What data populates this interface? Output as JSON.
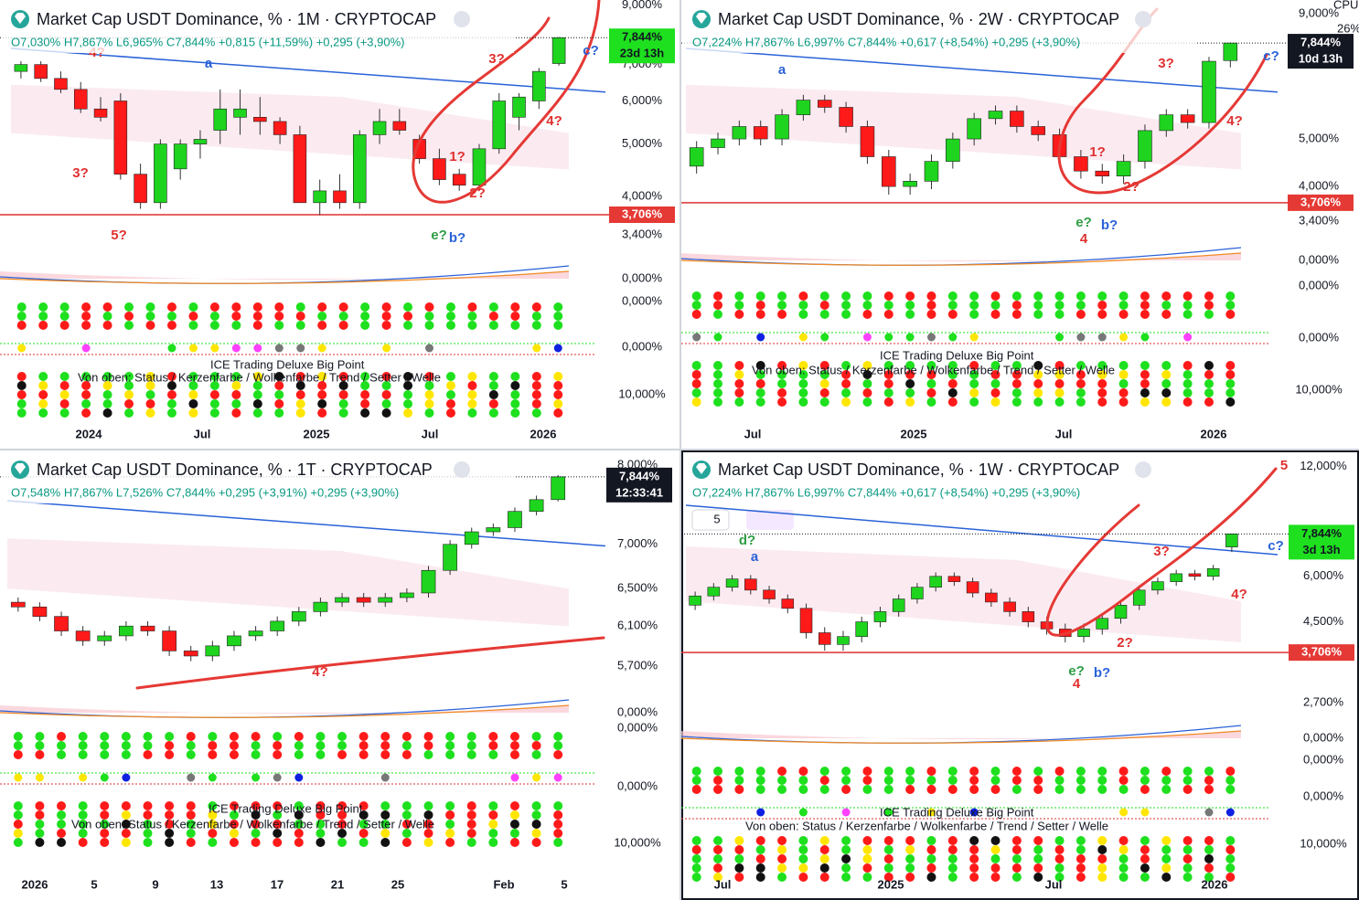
{
  "chart_data": [
    {
      "type": "candlestick",
      "title": "Market Cap USDT Dominance, % · 1M · CRYPTOCAP",
      "ohlc": "O7,030% H7,867% L6,965% C7,844% +0,815 (+11,59%) +0,295 (+3,90%)",
      "log_scale": true,
      "grid": false,
      "up_color": "#1ed41e",
      "down_color": "#ff1a1a",
      "ylim": [
        3.3,
        9.2
      ],
      "yticks": [
        {
          "value": 9.0,
          "label": "9,000%"
        },
        {
          "value": 7.0,
          "label": "7,000%"
        },
        {
          "value": 6.0,
          "label": "6,000%"
        },
        {
          "value": 5.0,
          "label": "5,000%"
        },
        {
          "value": 4.0,
          "label": "4,000%"
        },
        {
          "value": 3.4,
          "label": "3,400%"
        }
      ],
      "open": [
        6.8,
        7.0,
        6.6,
        6.3,
        5.8,
        6.0,
        4.4,
        3.9,
        4.5,
        5.0,
        5.3,
        5.6,
        5.6,
        5.5,
        5.2,
        3.9,
        4.1,
        3.9,
        5.2,
        5.5,
        5.1,
        4.7,
        4.4,
        4.2,
        4.9,
        5.6,
        6.0,
        7.03
      ],
      "high": [
        7.1,
        7.1,
        6.8,
        6.5,
        6.1,
        6.2,
        4.6,
        5.1,
        5.1,
        5.3,
        6.3,
        6.3,
        6.1,
        5.6,
        5.4,
        4.3,
        4.4,
        5.3,
        5.8,
        5.8,
        5.2,
        4.9,
        4.5,
        5.0,
        6.2,
        6.2,
        6.9,
        7.867
      ],
      "low": [
        6.6,
        6.5,
        6.2,
        5.7,
        5.5,
        4.3,
        3.8,
        3.8,
        4.3,
        4.7,
        5.0,
        5.2,
        5.2,
        5.0,
        3.9,
        3.7,
        3.8,
        3.8,
        5.0,
        5.2,
        4.6,
        4.2,
        4.1,
        4.1,
        4.8,
        5.3,
        5.8,
        6.965
      ],
      "close": [
        7.0,
        6.6,
        6.3,
        5.8,
        5.6,
        4.4,
        3.9,
        5.0,
        5.0,
        5.1,
        5.8,
        5.8,
        5.5,
        5.2,
        3.9,
        4.1,
        3.9,
        5.2,
        5.5,
        5.3,
        4.7,
        4.3,
        4.2,
        4.9,
        6.0,
        6.1,
        6.8,
        7.844
      ],
      "last_price": {
        "value": 7.844,
        "label": "7,844%"
      },
      "countdown": "23d 13h",
      "support": {
        "value": 3.706,
        "label": "3,706%"
      },
      "time_labels": [
        "2024",
        "Jul",
        "2025",
        "Jul",
        "2026"
      ],
      "indicator_labels": [
        "0,000%",
        "0,000%",
        "0,000%",
        "10,000%"
      ],
      "indicator_texts": [
        "ICE Trading Deluxe Big Point",
        "Von oben: Status / Kerzenfarbe / Wolkenfarbe / Trend / Setter / Welle"
      ],
      "annotations": [
        {
          "text": "4?",
          "color": "#e03030"
        },
        {
          "text": "a",
          "color": "#2a62d8"
        },
        {
          "text": "3?",
          "color": "#e03030"
        },
        {
          "text": "5?",
          "color": "#e03030"
        },
        {
          "text": "3?",
          "color": "#e03030"
        },
        {
          "text": "4?",
          "color": "#e03030"
        },
        {
          "text": "1?",
          "color": "#e03030"
        },
        {
          "text": "2?",
          "color": "#e03030"
        },
        {
          "text": "e?",
          "color": "#2e9e44"
        },
        {
          "text": "b?",
          "color": "#2a62d8"
        },
        {
          "text": "c?",
          "color": "#2a62d8"
        }
      ]
    },
    {
      "type": "candlestick",
      "title": "Market Cap USDT Dominance, % · 2W · CRYPTOCAP",
      "ohlc": "O7,224% H7,867% L6,997% C7,844% +0,617 (+8,54%) +0,295 (+3,90%)",
      "log_scale": true,
      "grid": false,
      "up_color": "#1ed41e",
      "down_color": "#ff1a1a",
      "ylim": [
        3.08,
        9.6
      ],
      "yticks": [
        {
          "value": 9.0,
          "label": "9,000%"
        },
        {
          "value": 5.0,
          "label": "5,000%"
        },
        {
          "value": 4.0,
          "label": "4,000%"
        },
        {
          "value": 3.4,
          "label": "3,400%"
        }
      ],
      "open": [
        4.4,
        4.8,
        5.0,
        5.3,
        5.0,
        5.6,
        6.0,
        5.8,
        5.3,
        4.6,
        4.0,
        4.1,
        4.5,
        5.0,
        5.5,
        5.7,
        5.3,
        5.1,
        4.6,
        4.3,
        4.2,
        4.5,
        5.2,
        5.6,
        5.4,
        7.224
      ],
      "high": [
        4.95,
        5.15,
        5.45,
        5.45,
        5.75,
        6.15,
        6.15,
        5.95,
        5.45,
        4.75,
        4.25,
        4.65,
        5.15,
        5.65,
        5.85,
        5.85,
        5.45,
        5.25,
        4.75,
        4.45,
        4.65,
        5.35,
        5.75,
        5.75,
        7.35,
        7.867
      ],
      "low": [
        4.25,
        4.65,
        4.85,
        4.85,
        4.85,
        5.45,
        5.65,
        5.15,
        4.45,
        3.85,
        3.85,
        3.95,
        4.35,
        4.85,
        5.35,
        5.15,
        4.95,
        4.45,
        4.15,
        4.05,
        4.05,
        4.35,
        5.05,
        5.25,
        5.25,
        6.997
      ],
      "close": [
        4.8,
        5.0,
        5.3,
        5.0,
        5.6,
        6.0,
        5.8,
        5.3,
        4.6,
        4.0,
        4.1,
        4.5,
        5.0,
        5.5,
        5.7,
        5.3,
        5.1,
        4.6,
        4.3,
        4.2,
        4.5,
        5.2,
        5.6,
        5.4,
        7.2,
        7.844
      ],
      "last_price": {
        "value": 7.844,
        "label": "7,844%"
      },
      "countdown": "10d 13h",
      "support": {
        "value": 3.706,
        "label": "3,706%"
      },
      "time_labels": [
        "Jul",
        "2025",
        "Jul",
        "2026"
      ],
      "indicator_labels": [
        "0,000%",
        "0,000%",
        "0,000%",
        "10,000%"
      ],
      "indicator_texts": [
        "ICE Trading Deluxe Big Point",
        "Von oben: Status / Kerzenfarbe / Wolkenfarbe / Trend / Setter / Welle"
      ],
      "annotations": [
        {
          "text": "a",
          "color": "#2a62d8"
        },
        {
          "text": "3?",
          "color": "#e03030"
        },
        {
          "text": "4?",
          "color": "#e03030"
        },
        {
          "text": "1?",
          "color": "#e03030"
        },
        {
          "text": "2?",
          "color": "#e03030"
        },
        {
          "text": "e?",
          "color": "#2e9e44"
        },
        {
          "text": "b?",
          "color": "#2a62d8"
        },
        {
          "text": "4",
          "color": "#e03030"
        },
        {
          "text": "c?",
          "color": "#2a62d8"
        }
      ]
    },
    {
      "type": "candlestick",
      "title": "Market Cap USDT Dominance, % · 1T · CRYPTOCAP",
      "ohlc": "O7,548% H7,867% L7,526% C7,844% +0,295 (+3,91%) +0,295 (+3,90%)",
      "log_scale": true,
      "grid": false,
      "up_color": "#1ed41e",
      "down_color": "#ff1a1a",
      "ylim": [
        5.37,
        8.2
      ],
      "yticks": [
        {
          "value": 8.0,
          "label": "8,000%"
        },
        {
          "value": 7.0,
          "label": "7,000%"
        },
        {
          "value": 6.5,
          "label": "6,500%"
        },
        {
          "value": 6.1,
          "label": "6,100%"
        },
        {
          "value": 5.7,
          "label": "5,700%"
        }
      ],
      "open": [
        6.35,
        6.3,
        6.2,
        6.05,
        5.95,
        6.0,
        6.1,
        6.05,
        5.85,
        5.8,
        5.9,
        6.0,
        6.05,
        6.15,
        6.25,
        6.35,
        6.4,
        6.35,
        6.4,
        6.45,
        6.7,
        7.0,
        7.15,
        7.2,
        7.4,
        7.548
      ],
      "high": [
        6.4,
        6.35,
        6.25,
        6.1,
        6.05,
        6.15,
        6.15,
        6.1,
        5.9,
        5.95,
        6.05,
        6.1,
        6.2,
        6.3,
        6.4,
        6.45,
        6.45,
        6.45,
        6.5,
        6.75,
        7.05,
        7.2,
        7.25,
        7.45,
        7.6,
        7.867
      ],
      "low": [
        6.25,
        6.15,
        6.0,
        5.9,
        5.9,
        5.95,
        6.0,
        5.8,
        5.75,
        5.75,
        5.85,
        5.95,
        6.0,
        6.1,
        6.2,
        6.3,
        6.3,
        6.3,
        6.35,
        6.4,
        6.65,
        6.95,
        7.1,
        7.15,
        7.35,
        7.526
      ],
      "close": [
        6.3,
        6.2,
        6.05,
        5.95,
        6.0,
        6.1,
        6.05,
        5.85,
        5.8,
        5.9,
        6.0,
        6.05,
        6.15,
        6.25,
        6.35,
        6.4,
        6.35,
        6.4,
        6.45,
        6.7,
        7.0,
        7.15,
        7.2,
        7.4,
        7.548,
        7.844
      ],
      "last_price": {
        "value": 7.844,
        "label": "7,844%"
      },
      "countdown": "12:33:41",
      "time_labels": [
        "2026",
        "5",
        "9",
        "13",
        "17",
        "21",
        "25",
        "Feb",
        "5"
      ],
      "indicator_labels": [
        "0,000%",
        "0,000%",
        "0,000%",
        "10,000%"
      ],
      "indicator_texts": [
        "ICE Trading Deluxe Big Point",
        "Von oben: Status / Kerzenfarbe / Wolkenfarbe / Trend / Setter / Welle"
      ],
      "annotations": [
        {
          "text": "4?",
          "color": "#e03030"
        }
      ]
    },
    {
      "type": "candlestick",
      "title": "Market Cap USDT Dominance, % · 1W · CRYPTOCAP",
      "ohlc": "O7,224% H7,867% L6,997% C7,844% +0,617 (+8,54%) +0,295 (+3,90%)",
      "log_scale": true,
      "grid": false,
      "up_color": "#1ed41e",
      "down_color": "#ff1a1a",
      "ylim": [
        2.35,
        13.3
      ],
      "yticks": [
        {
          "value": 12.0,
          "label": "12,000%"
        },
        {
          "value": 6.0,
          "label": "6,000%"
        },
        {
          "value": 4.5,
          "label": "4,500%"
        },
        {
          "value": 2.7,
          "label": "2,700%"
        }
      ],
      "open": [
        5.0,
        5.3,
        5.6,
        5.9,
        5.5,
        5.2,
        4.9,
        4.2,
        3.9,
        4.1,
        4.5,
        4.8,
        5.2,
        5.6,
        6.0,
        5.8,
        5.4,
        5.1,
        4.8,
        4.5,
        4.3,
        4.1,
        4.3,
        4.6,
        5.0,
        5.5,
        5.8,
        6.1,
        6.0,
        7.224
      ],
      "high": [
        5.45,
        5.75,
        6.05,
        6.05,
        5.65,
        5.35,
        5.05,
        4.35,
        4.25,
        4.65,
        4.95,
        5.35,
        5.75,
        6.15,
        6.15,
        5.95,
        5.55,
        5.25,
        4.95,
        4.65,
        4.45,
        4.45,
        4.75,
        5.15,
        5.65,
        5.95,
        6.25,
        6.25,
        6.45,
        7.867
      ],
      "low": [
        4.85,
        5.15,
        5.45,
        5.35,
        5.05,
        4.75,
        4.05,
        3.75,
        3.75,
        3.95,
        4.35,
        4.65,
        5.05,
        5.45,
        5.65,
        5.25,
        4.95,
        4.65,
        4.35,
        4.15,
        3.95,
        3.95,
        4.15,
        4.45,
        4.85,
        5.35,
        5.65,
        5.85,
        5.85,
        6.997
      ],
      "close": [
        5.3,
        5.6,
        5.9,
        5.5,
        5.2,
        4.9,
        4.2,
        3.9,
        4.1,
        4.5,
        4.8,
        5.2,
        5.6,
        6.0,
        5.8,
        5.4,
        5.1,
        4.8,
        4.5,
        4.3,
        4.1,
        4.3,
        4.6,
        5.0,
        5.5,
        5.8,
        6.1,
        6.0,
        6.3,
        7.844
      ],
      "last_price": {
        "value": 7.844,
        "label": "7,844%"
      },
      "countdown": "3d 13h",
      "support": {
        "value": 3.706,
        "label": "3,706%"
      },
      "time_labels": [
        "Jul",
        "2025",
        "Jul",
        "2026"
      ],
      "indicator_labels": [
        "0,000%",
        "0,000%",
        "0,000%",
        "10,000%"
      ],
      "indicator_texts": [
        "ICE Trading Deluxe Big Point",
        "Von oben: Status / Kerzenfarbe / Wolkenfarbe / Trend / Setter / Welle"
      ],
      "annotations": [
        {
          "text": "d?",
          "color": "#2e9e44"
        },
        {
          "text": "a",
          "color": "#2a62d8"
        },
        {
          "text": "3?",
          "color": "#e03030"
        },
        {
          "text": "4?",
          "color": "#e03030"
        },
        {
          "text": "2?",
          "color": "#e03030"
        },
        {
          "text": "e?",
          "color": "#2e9e44"
        },
        {
          "text": "b?",
          "color": "#2a62d8"
        },
        {
          "text": "4",
          "color": "#e03030"
        },
        {
          "text": "c?",
          "color": "#2a62d8"
        }
      ]
    }
  ],
  "cpu": {
    "label": "CPU",
    "value": "26%"
  },
  "toolbar_interval": "5",
  "panel_marker": "5"
}
